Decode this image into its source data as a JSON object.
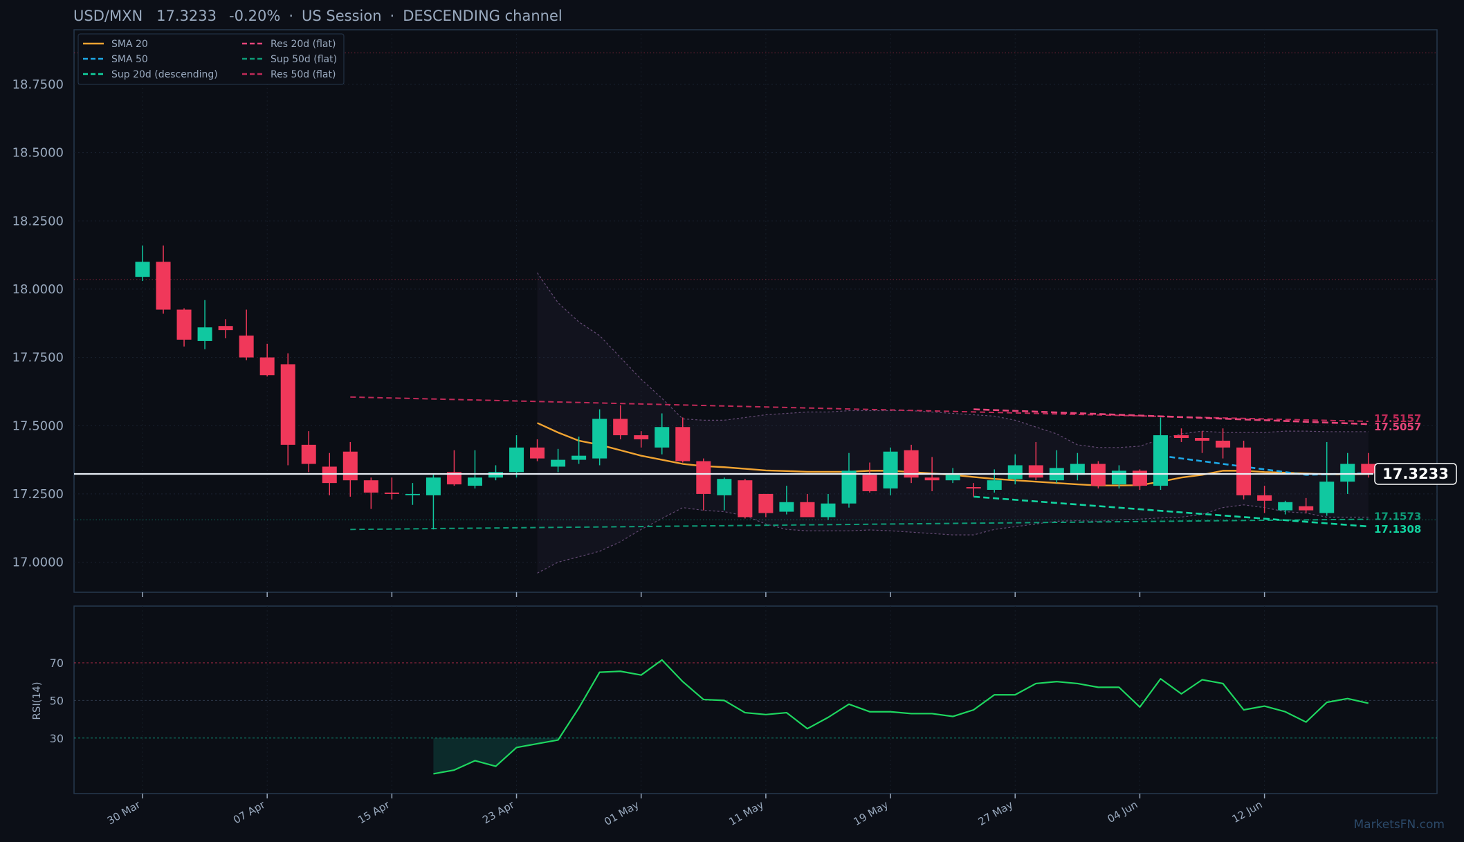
{
  "header": {
    "symbol": "USD/MXN",
    "price": "17.3233",
    "change": "-0.20%",
    "session": "US Session",
    "channel": "DESCENDING channel",
    "separator": "·"
  },
  "watermark": "MarketsFN.com",
  "price_badge": "17.3233",
  "colors": {
    "background": "#0c0f17",
    "panel_border": "#26384e",
    "up": "#10c8a0",
    "down": "#f0385a",
    "sma20": "#f2a432",
    "sma50": "#1ea8e6",
    "sup20": "#12d4a0",
    "res20": "#e8457a",
    "sup50": "#0e9c78",
    "res50": "#c02a58",
    "rsi": "#1ed760",
    "text": "#9aaabf"
  },
  "chart_data": [
    {
      "type": "candlestick",
      "title": "USD/MXN   17.3233   -0.20%  ·  US Session  ·  DESCENDING channel",
      "ylim": [
        16.89,
        18.95
      ],
      "yticks": [
        "17.0000",
        "17.2500",
        "17.5000",
        "17.7500",
        "18.0000",
        "18.2500",
        "18.5000",
        "18.7500"
      ],
      "ytick_values": [
        17.0,
        17.25,
        17.5,
        17.75,
        18.0,
        18.25,
        18.5,
        18.75
      ],
      "xticks": [
        "30 Mar",
        "07 Apr",
        "15 Apr",
        "23 Apr",
        "01 May",
        "11 May",
        "19 May",
        "27 May",
        "04 Jun",
        "12 Jun"
      ],
      "xtick_index": [
        0,
        6,
        12,
        18,
        24,
        30,
        36,
        42,
        48,
        54
      ],
      "legend": [
        {
          "label": "SMA 20",
          "key": "sma20",
          "dash": "solid"
        },
        {
          "label": "SMA 50",
          "key": "sma50",
          "dash": "dashed"
        },
        {
          "label": "Sup 20d (descending)",
          "key": "sup20",
          "dash": "dashed"
        },
        {
          "label": "Res 20d (flat)",
          "key": "res20",
          "dash": "dashed"
        },
        {
          "label": "Sup 50d (flat)",
          "key": "sup50",
          "dash": "dashed"
        },
        {
          "label": "Res 50d (flat)",
          "key": "res50",
          "dash": "dashed"
        }
      ],
      "legend_position": "top-left",
      "candles": [
        {
          "o": 18.045,
          "h": 18.16,
          "l": 18.03,
          "c": 18.1
        },
        {
          "o": 18.1,
          "h": 18.16,
          "l": 17.91,
          "c": 17.925
        },
        {
          "o": 17.925,
          "h": 17.93,
          "l": 17.79,
          "c": 17.815
        },
        {
          "o": 17.81,
          "h": 17.96,
          "l": 17.78,
          "c": 17.86
        },
        {
          "o": 17.865,
          "h": 17.89,
          "l": 17.82,
          "c": 17.85
        },
        {
          "o": 17.83,
          "h": 17.925,
          "l": 17.74,
          "c": 17.75
        },
        {
          "o": 17.75,
          "h": 17.8,
          "l": 17.68,
          "c": 17.685
        },
        {
          "o": 17.725,
          "h": 17.765,
          "l": 17.355,
          "c": 17.43
        },
        {
          "o": 17.43,
          "h": 17.48,
          "l": 17.33,
          "c": 17.36
        },
        {
          "o": 17.35,
          "h": 17.4,
          "l": 17.245,
          "c": 17.29
        },
        {
          "o": 17.405,
          "h": 17.44,
          "l": 17.24,
          "c": 17.3
        },
        {
          "o": 17.3,
          "h": 17.31,
          "l": 17.195,
          "c": 17.255
        },
        {
          "o": 17.255,
          "h": 17.31,
          "l": 17.23,
          "c": 17.25
        },
        {
          "o": 17.25,
          "h": 17.29,
          "l": 17.21,
          "c": 17.25
        },
        {
          "o": 17.245,
          "h": 17.32,
          "l": 17.12,
          "c": 17.31
        },
        {
          "o": 17.33,
          "h": 17.41,
          "l": 17.28,
          "c": 17.285
        },
        {
          "o": 17.28,
          "h": 17.41,
          "l": 17.27,
          "c": 17.31
        },
        {
          "o": 17.31,
          "h": 17.355,
          "l": 17.3,
          "c": 17.33
        },
        {
          "o": 17.33,
          "h": 17.465,
          "l": 17.31,
          "c": 17.42
        },
        {
          "o": 17.42,
          "h": 17.45,
          "l": 17.37,
          "c": 17.38
        },
        {
          "o": 17.35,
          "h": 17.415,
          "l": 17.33,
          "c": 17.375
        },
        {
          "o": 17.375,
          "h": 17.46,
          "l": 17.36,
          "c": 17.39
        },
        {
          "o": 17.38,
          "h": 17.56,
          "l": 17.355,
          "c": 17.525
        },
        {
          "o": 17.525,
          "h": 17.575,
          "l": 17.45,
          "c": 17.465
        },
        {
          "o": 17.465,
          "h": 17.48,
          "l": 17.42,
          "c": 17.45
        },
        {
          "o": 17.42,
          "h": 17.545,
          "l": 17.395,
          "c": 17.495
        },
        {
          "o": 17.495,
          "h": 17.53,
          "l": 17.365,
          "c": 17.37
        },
        {
          "o": 17.37,
          "h": 17.38,
          "l": 17.19,
          "c": 17.25
        },
        {
          "o": 17.245,
          "h": 17.31,
          "l": 17.19,
          "c": 17.305
        },
        {
          "o": 17.3,
          "h": 17.305,
          "l": 17.16,
          "c": 17.165
        },
        {
          "o": 17.25,
          "h": 17.25,
          "l": 17.165,
          "c": 17.18
        },
        {
          "o": 17.185,
          "h": 17.28,
          "l": 17.175,
          "c": 17.22
        },
        {
          "o": 17.22,
          "h": 17.25,
          "l": 17.165,
          "c": 17.165
        },
        {
          "o": 17.165,
          "h": 17.25,
          "l": 17.155,
          "c": 17.215
        },
        {
          "o": 17.215,
          "h": 17.4,
          "l": 17.2,
          "c": 17.335
        },
        {
          "o": 17.32,
          "h": 17.365,
          "l": 17.255,
          "c": 17.26
        },
        {
          "o": 17.27,
          "h": 17.42,
          "l": 17.245,
          "c": 17.405
        },
        {
          "o": 17.41,
          "h": 17.43,
          "l": 17.29,
          "c": 17.31
        },
        {
          "o": 17.31,
          "h": 17.385,
          "l": 17.26,
          "c": 17.3
        },
        {
          "o": 17.3,
          "h": 17.345,
          "l": 17.29,
          "c": 17.32
        },
        {
          "o": 17.275,
          "h": 17.29,
          "l": 17.24,
          "c": 17.27
        },
        {
          "o": 17.265,
          "h": 17.34,
          "l": 17.255,
          "c": 17.3
        },
        {
          "o": 17.305,
          "h": 17.395,
          "l": 17.285,
          "c": 17.355
        },
        {
          "o": 17.355,
          "h": 17.44,
          "l": 17.3,
          "c": 17.31
        },
        {
          "o": 17.3,
          "h": 17.41,
          "l": 17.29,
          "c": 17.345
        },
        {
          "o": 17.32,
          "h": 17.4,
          "l": 17.3,
          "c": 17.36
        },
        {
          "o": 17.36,
          "h": 17.37,
          "l": 17.27,
          "c": 17.28
        },
        {
          "o": 17.285,
          "h": 17.355,
          "l": 17.27,
          "c": 17.335
        },
        {
          "o": 17.335,
          "h": 17.34,
          "l": 17.265,
          "c": 17.28
        },
        {
          "o": 17.28,
          "h": 17.53,
          "l": 17.265,
          "c": 17.465
        },
        {
          "o": 17.465,
          "h": 17.49,
          "l": 17.44,
          "c": 17.455
        },
        {
          "o": 17.455,
          "h": 17.48,
          "l": 17.4,
          "c": 17.445
        },
        {
          "o": 17.445,
          "h": 17.49,
          "l": 17.38,
          "c": 17.42
        },
        {
          "o": 17.42,
          "h": 17.445,
          "l": 17.23,
          "c": 17.245
        },
        {
          "o": 17.245,
          "h": 17.28,
          "l": 17.18,
          "c": 17.225
        },
        {
          "o": 17.19,
          "h": 17.225,
          "l": 17.175,
          "c": 17.22
        },
        {
          "o": 17.205,
          "h": 17.235,
          "l": 17.18,
          "c": 17.19
        },
        {
          "o": 17.18,
          "h": 17.44,
          "l": 17.17,
          "c": 17.295
        },
        {
          "o": 17.295,
          "h": 17.4,
          "l": 17.25,
          "c": 17.36
        },
        {
          "o": 17.36,
          "h": 17.4,
          "l": 17.31,
          "c": 17.325
        }
      ],
      "sma20": [
        null,
        null,
        null,
        null,
        null,
        null,
        null,
        null,
        null,
        null,
        null,
        null,
        null,
        null,
        null,
        null,
        null,
        null,
        null,
        17.51,
        17.475,
        17.445,
        17.43,
        17.41,
        17.39,
        17.375,
        17.36,
        17.352,
        17.348,
        17.342,
        17.336,
        17.334,
        17.331,
        17.331,
        17.331,
        17.335,
        17.335,
        17.33,
        17.325,
        17.32,
        17.312,
        17.305,
        17.3,
        17.295,
        17.29,
        17.285,
        17.281,
        17.281,
        17.282,
        17.295,
        17.31,
        17.32,
        17.335,
        17.335,
        17.33,
        17.328,
        17.325,
        17.322,
        17.322,
        17.323
      ],
      "sma50": [
        null,
        null,
        null,
        null,
        null,
        null,
        null,
        null,
        null,
        null,
        null,
        null,
        null,
        null,
        null,
        null,
        null,
        null,
        null,
        null,
        null,
        null,
        null,
        null,
        null,
        null,
        null,
        null,
        null,
        null,
        null,
        null,
        null,
        null,
        null,
        null,
        null,
        null,
        null,
        null,
        null,
        null,
        null,
        null,
        null,
        null,
        null,
        null,
        null,
        17.39,
        17.38,
        17.37,
        17.36,
        17.35,
        17.34,
        17.33,
        17.32,
        17.322,
        17.324,
        17.325
      ],
      "bb_upper": [
        null,
        null,
        null,
        null,
        null,
        null,
        null,
        null,
        null,
        null,
        null,
        null,
        null,
        null,
        null,
        null,
        null,
        null,
        null,
        18.06,
        17.95,
        17.88,
        17.83,
        17.75,
        17.67,
        17.6,
        17.525,
        17.52,
        17.52,
        17.53,
        17.54,
        17.545,
        17.55,
        17.55,
        17.555,
        17.555,
        17.555,
        17.555,
        17.55,
        17.545,
        17.54,
        17.535,
        17.52,
        17.495,
        17.47,
        17.43,
        17.42,
        17.42,
        17.425,
        17.45,
        17.47,
        17.48,
        17.475,
        17.475,
        17.475,
        17.48,
        17.48,
        17.478,
        17.478,
        17.478
      ],
      "bb_lower": [
        null,
        null,
        null,
        null,
        null,
        null,
        null,
        null,
        null,
        null,
        null,
        null,
        null,
        null,
        null,
        null,
        null,
        null,
        null,
        16.96,
        17.0,
        17.02,
        17.04,
        17.075,
        17.12,
        17.16,
        17.2,
        17.19,
        17.185,
        17.17,
        17.14,
        17.12,
        17.115,
        17.115,
        17.115,
        17.118,
        17.115,
        17.11,
        17.105,
        17.1,
        17.1,
        17.12,
        17.13,
        17.14,
        17.15,
        17.152,
        17.15,
        17.155,
        17.158,
        17.162,
        17.165,
        17.175,
        17.2,
        17.21,
        17.2,
        17.185,
        17.18,
        17.165,
        17.165,
        17.165
      ],
      "sup20": {
        "from": [
          40,
          17.24
        ],
        "to": [
          59,
          17.1308
        ],
        "label": "17.1308"
      },
      "res20": {
        "from": [
          40,
          17.56
        ],
        "to": [
          59,
          17.5057
        ],
        "label": "17.5057"
      },
      "sup50": {
        "from": [
          10,
          17.12
        ],
        "to": [
          59,
          17.1573
        ],
        "label": "17.1573"
      },
      "res50": {
        "from": [
          10,
          17.605
        ],
        "to": [
          59,
          17.5157
        ],
        "label": "17.5157"
      },
      "hlines": [
        {
          "value": 18.865,
          "color": "#f0385a"
        },
        {
          "value": 18.035,
          "color": "#f0385a"
        },
        {
          "value": 17.155,
          "color": "#10c8a0"
        }
      ],
      "last_price": 17.3233
    },
    {
      "type": "line",
      "ylabel": "RSI(14)",
      "ylim": [
        0,
        100
      ],
      "yticks": [
        "30",
        "50",
        "70"
      ],
      "ytick_values": [
        30,
        50,
        70
      ],
      "overbought": 70,
      "oversold": 30,
      "values": [
        null,
        null,
        null,
        null,
        null,
        null,
        null,
        null,
        null,
        null,
        null,
        null,
        null,
        null,
        11,
        13,
        18,
        15,
        25,
        27,
        29,
        46,
        65,
        65.5,
        63.5,
        71.5,
        60,
        50.5,
        50,
        43.5,
        42.5,
        43.5,
        35,
        41,
        48,
        44,
        44,
        43,
        43,
        41.5,
        45,
        53,
        53,
        59,
        60,
        59,
        57,
        57,
        46.5,
        61.5,
        53.5,
        61,
        59,
        45,
        47,
        44,
        38.5,
        49,
        51,
        48.5
      ]
    }
  ]
}
